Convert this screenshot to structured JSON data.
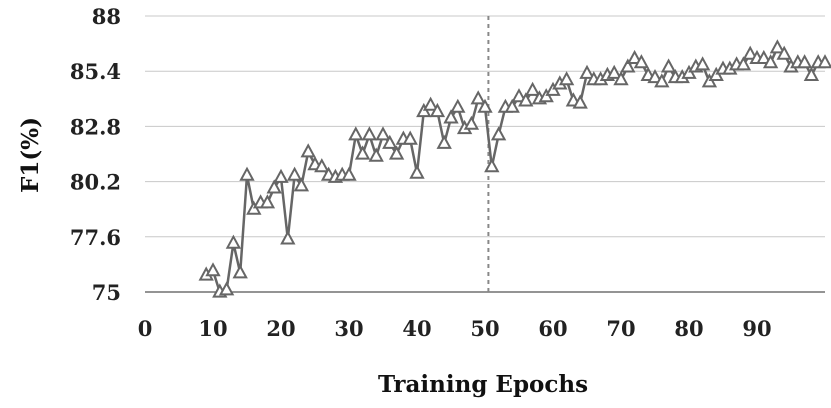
{
  "chart_data": {
    "type": "line",
    "title": "",
    "xlabel": "Training Epochs",
    "ylabel": "F1(%)",
    "xlim": [
      0,
      100
    ],
    "ylim": [
      75,
      88
    ],
    "y_ticks": [
      "75",
      "77.6",
      "80.2",
      "82.8",
      "85.4",
      "88"
    ],
    "x_ticks": [
      "0",
      "10",
      "20",
      "30",
      "40",
      "50",
      "60",
      "70",
      "80",
      "90"
    ],
    "grid": "horizontal",
    "legend": "none",
    "marker": "triangle",
    "line_color": "#666666",
    "grid_color": "#c8c8c8",
    "annotations": [
      {
        "type": "vertical-dashed-line",
        "x": 50.5,
        "color": "#888888"
      }
    ],
    "series": [
      {
        "x": [
          9,
          10,
          11,
          12,
          13,
          14,
          15,
          16,
          17,
          18,
          19,
          20,
          21,
          22,
          23,
          24,
          25,
          26,
          27,
          28,
          29,
          30,
          31,
          32,
          33,
          34,
          35,
          36,
          37,
          38,
          39,
          40,
          41,
          42,
          43,
          44,
          45,
          46,
          47,
          48,
          49,
          50,
          51,
          52,
          53,
          54,
          55,
          56,
          57,
          58,
          59,
          60,
          61,
          62,
          63,
          64,
          65,
          66,
          67,
          68,
          69,
          70,
          71,
          72,
          73,
          74,
          75,
          76,
          77,
          78,
          79,
          80,
          81,
          82,
          83,
          84,
          85,
          86,
          87,
          88,
          89,
          90,
          91,
          92,
          93,
          94,
          95,
          96,
          97,
          98,
          99,
          100
        ],
        "values": [
          75.8,
          76.0,
          75.0,
          75.1,
          77.3,
          75.9,
          80.5,
          78.9,
          79.2,
          79.2,
          79.9,
          80.4,
          77.5,
          80.5,
          80.0,
          81.6,
          81.0,
          80.9,
          80.5,
          80.4,
          80.5,
          80.5,
          82.4,
          81.5,
          82.4,
          81.4,
          82.4,
          82.0,
          81.5,
          82.2,
          82.2,
          80.6,
          83.5,
          83.8,
          83.5,
          82.0,
          83.2,
          83.7,
          82.7,
          82.9,
          84.1,
          83.7,
          80.9,
          82.4,
          83.7,
          83.7,
          84.2,
          84.0,
          84.5,
          84.1,
          84.2,
          84.5,
          84.8,
          85.0,
          84.0,
          83.9,
          85.3,
          85.0,
          85.0,
          85.2,
          85.3,
          85.0,
          85.6,
          86.0,
          85.8,
          85.2,
          85.1,
          84.9,
          85.6,
          85.1,
          85.1,
          85.3,
          85.6,
          85.7,
          84.9,
          85.2,
          85.5,
          85.5,
          85.7,
          85.7,
          86.2,
          86.0,
          86.0,
          85.8,
          86.5,
          86.2,
          85.6,
          85.8,
          85.8,
          85.2,
          85.8,
          85.8
        ]
      }
    ]
  }
}
